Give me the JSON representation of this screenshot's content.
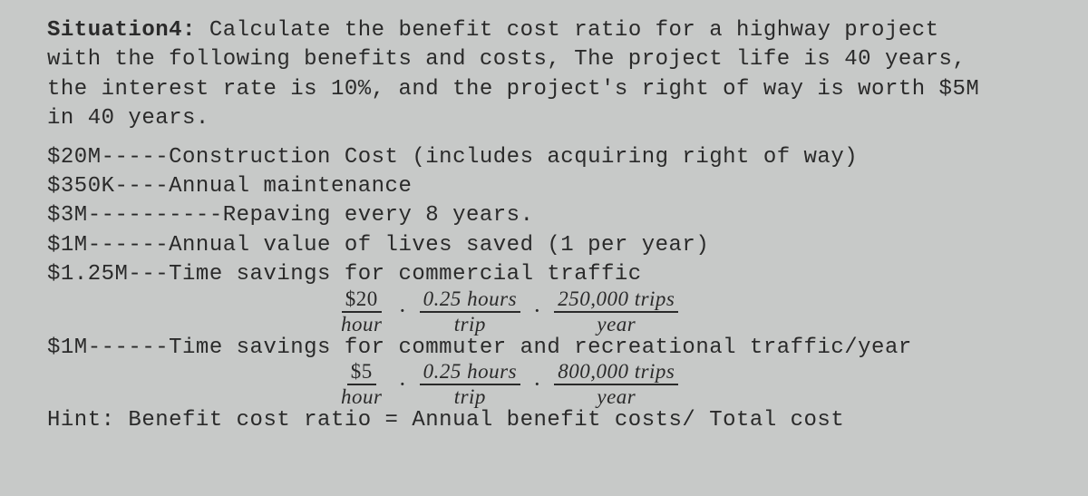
{
  "title_label": "Situation4:",
  "title_rest": " Calculate the benefit cost ratio for a highway project",
  "para_l2": "with the following benefits and costs, The project life is 40 years,",
  "para_l3": "the interest rate is 10%, and the project's right of way is worth $5M",
  "para_l4": "in 40 years.",
  "c1": "$20M-----Construction Cost (includes acquiring right of way)",
  "c2": "$350K----Annual maintenance",
  "c3": "$3M----------Repaving every 8 years.",
  "c4": "$1M------Annual value of lives saved (1 per year)",
  "c5": "$1.25M---Time savings for commercial traffic",
  "f1": {
    "a_num": "$20",
    "a_den": "hour",
    "b_num": "0.25 hours",
    "b_den": "trip",
    "c_num": "250,000 trips",
    "c_den": "year"
  },
  "c6": "$1M------Time savings for commuter and recreational traffic/year",
  "f2": {
    "a_num": "$5",
    "a_den": "hour",
    "b_num": "0.25 hours",
    "b_den": "trip",
    "c_num": "800,000 trips",
    "c_den": "year"
  },
  "hint": "Hint: Benefit cost ratio = Annual benefit costs/ Total cost",
  "colors": {
    "bg": "#c7c9c8",
    "text": "#2a2a2a"
  },
  "fonts": {
    "mono": "Courier New",
    "serif": "Georgia"
  }
}
